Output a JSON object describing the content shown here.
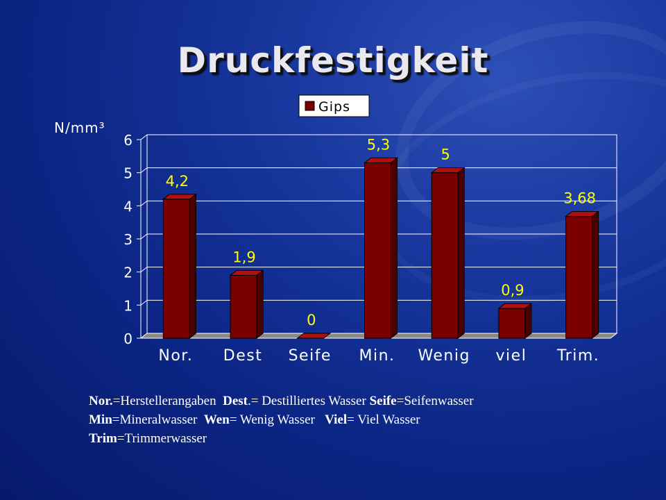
{
  "title": "Druckfestigkeit",
  "chart_data": {
    "type": "bar",
    "ylabel": "N/mm³",
    "categories": [
      "Nor.",
      "Dest",
      "Seife",
      "Min.",
      "Wenig",
      "viel",
      "Trim."
    ],
    "series": [
      {
        "name": "Gips",
        "values": [
          4.2,
          1.9,
          0,
          5.3,
          5,
          0.9,
          3.68
        ],
        "labels": [
          "4,2",
          "1,9",
          "0",
          "5,3",
          "5",
          "0,9",
          "3,68"
        ]
      }
    ],
    "ylim": [
      0,
      6
    ],
    "yticks": [
      0,
      1,
      2,
      3,
      4,
      5,
      6
    ],
    "grid": true,
    "legend": "top-center",
    "colors": {
      "bar": "#7a0000",
      "bar_side": "#4a0000",
      "bar_top": "#b01010",
      "label": "#ffff00",
      "axis": "#ffffff"
    }
  },
  "footnote": {
    "lines": [
      [
        {
          "b": "Nor."
        },
        {
          "t": "=Herstellerangaben  "
        },
        {
          "b": "Dest"
        },
        {
          "t": ".= Destilliertes Wasser "
        },
        {
          "b": "Seife"
        },
        {
          "t": "=Seifenwasser"
        }
      ],
      [
        {
          "b": "Min"
        },
        {
          "t": "=Mineralwasser  "
        },
        {
          "b": "Wen"
        },
        {
          "t": "= Wenig Wasser   "
        },
        {
          "b": "Viel"
        },
        {
          "t": "= Viel Wasser"
        }
      ],
      [
        {
          "b": "Trim"
        },
        {
          "t": "=Trimmerwasser"
        }
      ]
    ]
  }
}
